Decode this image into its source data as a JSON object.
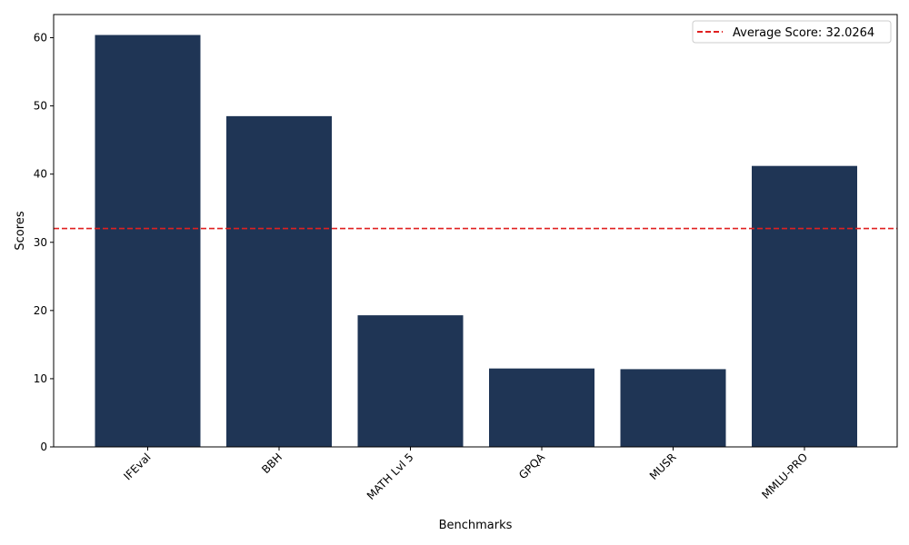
{
  "chart_data": {
    "type": "bar",
    "title": "",
    "xlabel": "Benchmarks",
    "ylabel": "Scores",
    "categories": [
      "IFEval",
      "BBH",
      "MATH Lvl 5",
      "GPQA",
      "MUSR",
      "MMLU-PRO"
    ],
    "values": [
      60.4,
      48.5,
      19.3,
      11.5,
      11.4,
      41.2
    ],
    "ylim": [
      0,
      63.4
    ],
    "yticks": [
      0,
      10,
      20,
      30,
      40,
      50,
      60
    ],
    "grid": false,
    "bar_color": "#1f3555",
    "reference_line": {
      "value": 32.0264,
      "label": "Average Score: 32.0264",
      "color": "#e02020",
      "style": "dashed"
    },
    "legend_position": "top-right"
  }
}
